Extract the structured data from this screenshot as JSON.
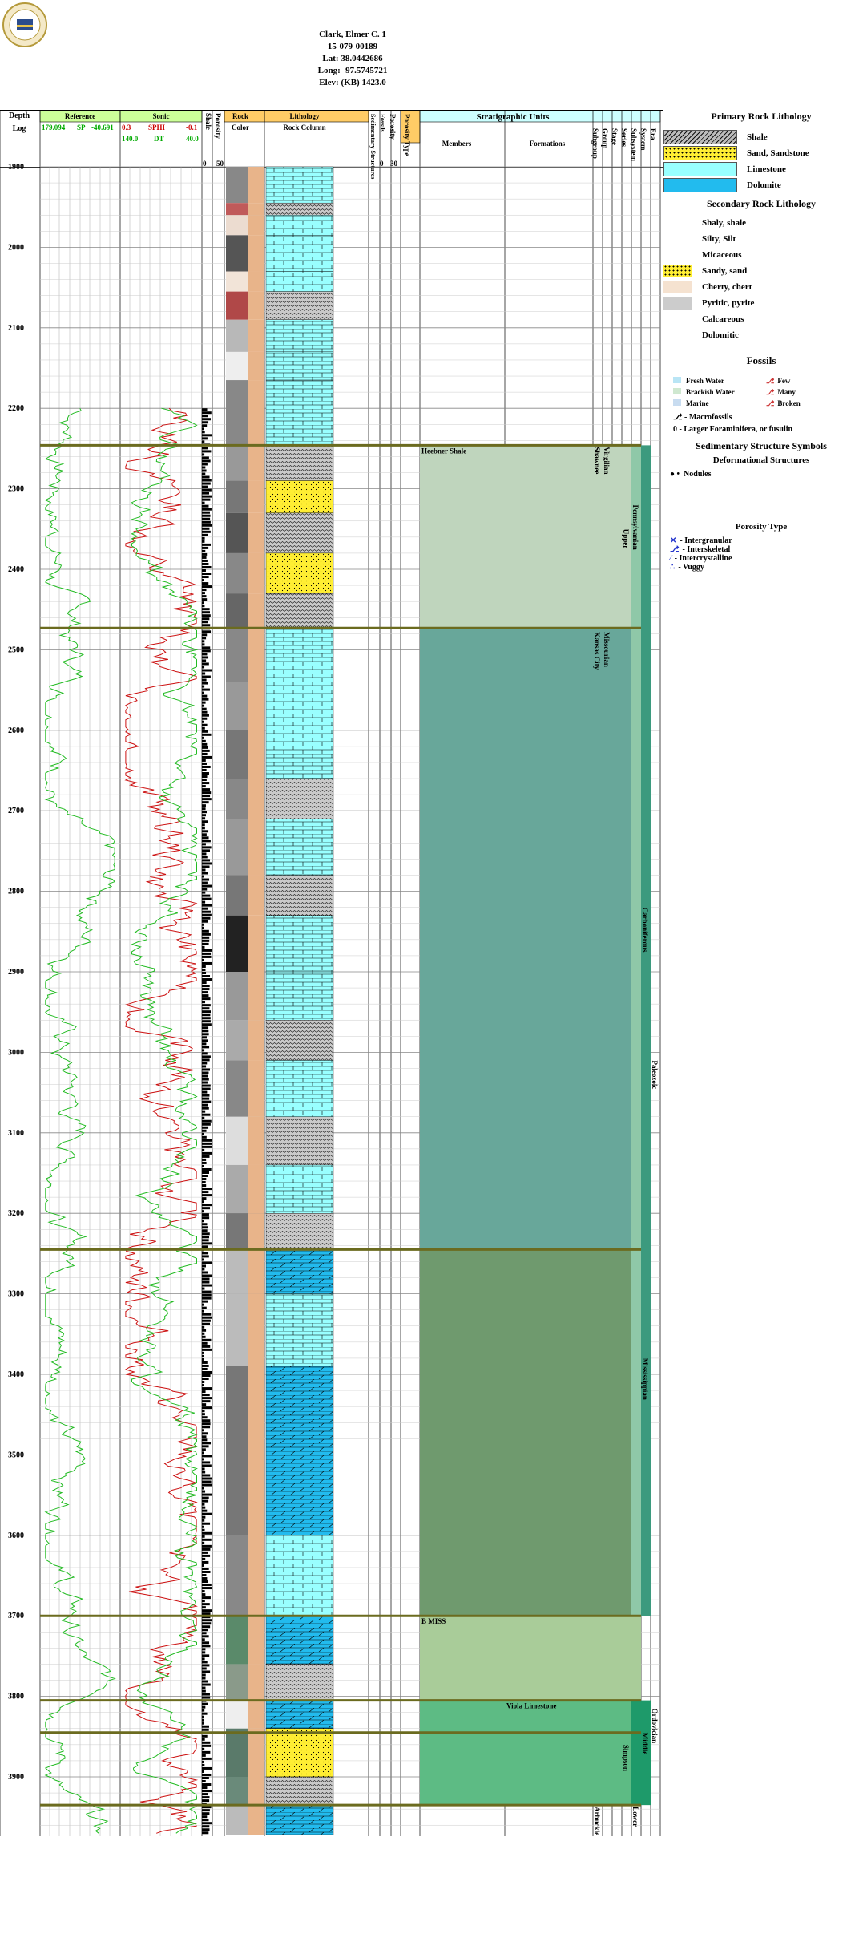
{
  "header": {
    "well_name": "Clark, Elmer C. 1",
    "api": "15-079-00189",
    "lat": "Lat: 38.0442686",
    "long": "Long: -97.5745721",
    "elev": "Elev: (KB) 1423.0"
  },
  "tracks": {
    "depth_title": "Depth",
    "log_title": "Log",
    "reference_title": "Reference",
    "reference_scale": [
      "179.094",
      "SP",
      "-40.691"
    ],
    "sonic_title": "Sonic",
    "sonic_scale_1": [
      "0.3",
      "SPHI",
      "-0.1"
    ],
    "sonic_scale_2": [
      "140.0",
      "DT",
      "40.0"
    ],
    "shale_title": "Shale",
    "porosity_title": "Porosity",
    "porosity_scale": [
      "0",
      "50"
    ],
    "rock_color_title": [
      "Rock",
      "Color"
    ],
    "lithology_title": "Lithology",
    "rock_column_title": "Rock Column",
    "sed_struct_title": "Sedimentary Structures",
    "fossils_title": "Fossils",
    "porosity2_title": "Porosity",
    "porosity2_scale": [
      "0",
      "30"
    ],
    "porosity_type_title": "Porosity Type",
    "strat_title": "Stratigraphic Units",
    "members_title": "Members",
    "formations_title": "Formations",
    "group_cols": [
      "Subgroup",
      "Group",
      "Stage",
      "Series",
      "Subsystem",
      "System",
      "Era"
    ]
  },
  "depths": [
    "1900",
    "2000",
    "2100",
    "2200",
    "2300",
    "2400",
    "2500",
    "2600",
    "2700",
    "2800",
    "2900",
    "3000",
    "3100",
    "3200",
    "3300",
    "3400",
    "3500",
    "3600",
    "3700",
    "3800",
    "3900"
  ],
  "strat_labels": {
    "heebner": "Heebner Shale",
    "bmiss": "B MISS",
    "viola": "Viola Limestone",
    "virgilian": "Virgilian",
    "shawnee": "Shawnee",
    "pennsylvanian": "Pennsylvanian",
    "upper": "Upper",
    "missourian": "Missourian",
    "kansas_city": "Kansas City",
    "carboniferous": "Carboniferous",
    "paleozoic": "Paleozoic",
    "mississippian": "Mississippian",
    "ordovician": "Ordovician",
    "middle": "Middle",
    "simpson": "Simpson",
    "lower": "Lower",
    "arbuckle": "Arbuckle"
  },
  "legend": {
    "primary_title": "Primary Rock Lithology",
    "primary": [
      "Shale",
      "Sand, Sandstone",
      "Limestone",
      "Dolomite"
    ],
    "secondary_title": "Secondary Rock Lithology",
    "secondary": [
      "Shaly, shale",
      "Silty, Silt",
      "Micaceous",
      "Sandy, sand",
      "Cherty, chert",
      "Pyritic, pyrite",
      "Calcareous",
      "Dolomitic"
    ],
    "fossils_title": "Fossils",
    "fossil_env": [
      "Fresh Water",
      "Brackish Water",
      "Marine"
    ],
    "fossil_abund": [
      "Few",
      "Many",
      "Broken"
    ],
    "macrofossils": "- Macrofossils",
    "foram": "- Larger Foraminifera, or fusulin",
    "sed_title": "Sedimentary Structure Symbols",
    "deform_title": "Deformational Structures",
    "nodules": "Nodules",
    "porosity_type_title": "Porosity Type",
    "porosity_types": [
      "- Intergranular",
      "- Interskeletal",
      "- Intercrystalline",
      "- Vuggy"
    ]
  },
  "colors": {
    "header_green": "#ccff99",
    "header_orange": "#ffcc66",
    "header_cyan": "#ccffff",
    "penn": "#bfd5bd",
    "kc": "#68a79a",
    "miss": "#6f9a6e",
    "bmiss": "#a9cc99",
    "viola": "#5dbb84",
    "limestone": "#99ffff",
    "dolomite": "#22bbee",
    "sand": "#ffee33"
  }
}
